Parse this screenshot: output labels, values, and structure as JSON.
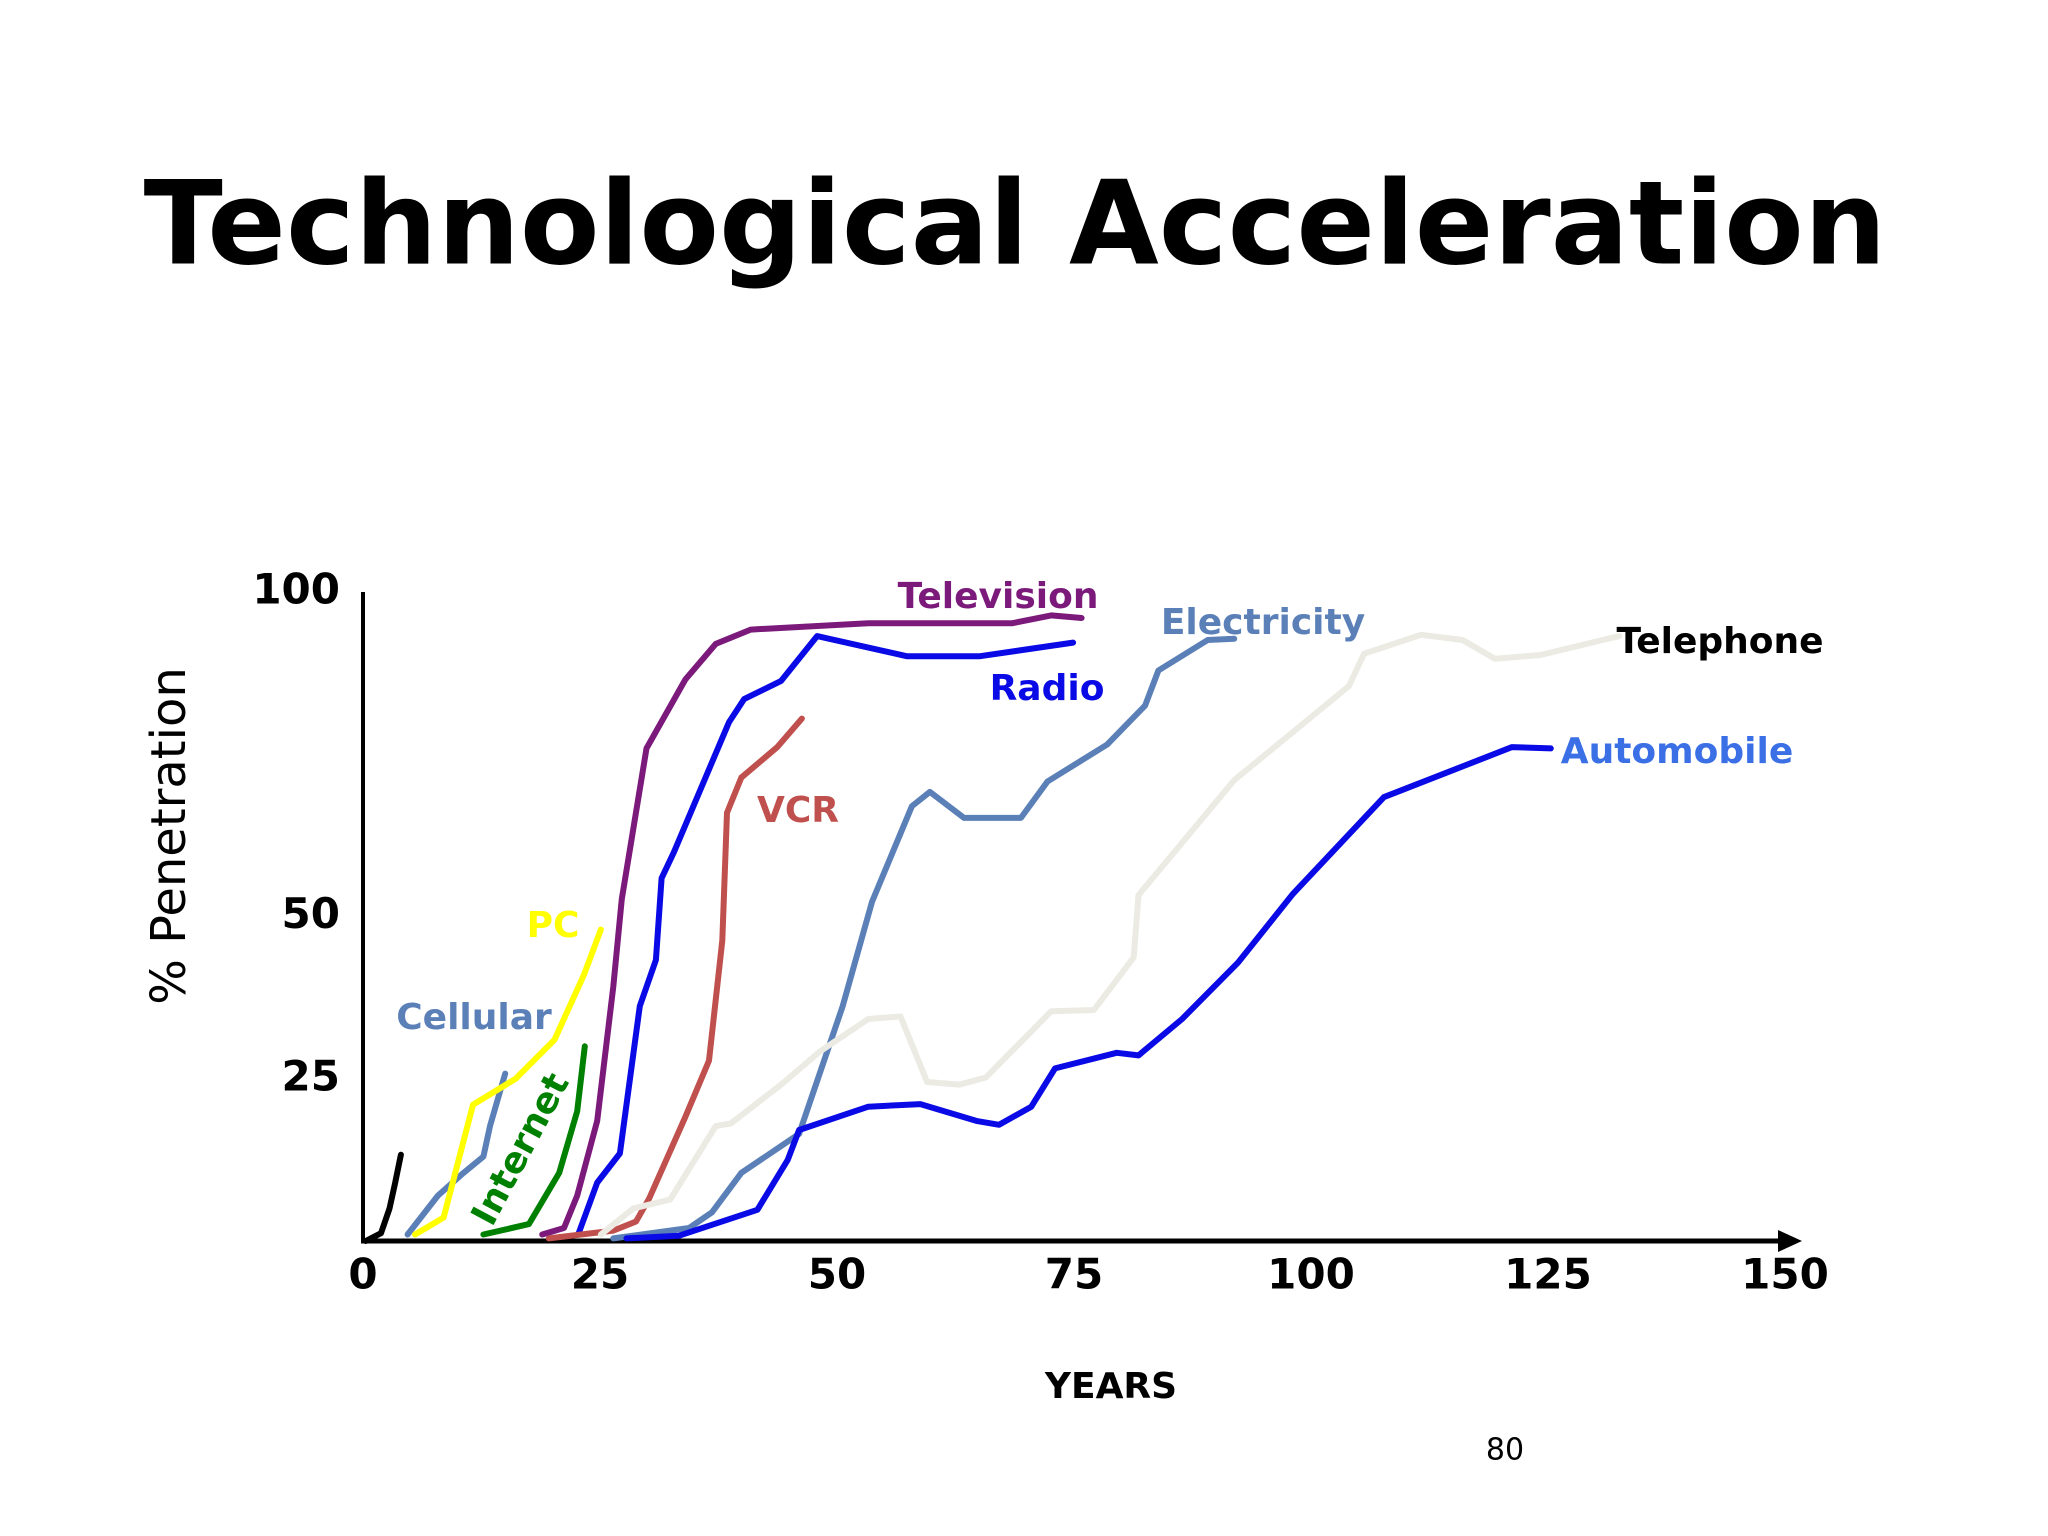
{
  "chart_data": {
    "type": "line",
    "title": "Technological Acceleration",
    "xlabel": "YEARS",
    "ylabel": "% Penetration",
    "page_number": "80",
    "xlim": [
      0,
      150
    ],
    "ylim": [
      0,
      100
    ],
    "xticks": [
      0,
      25,
      50,
      75,
      100,
      125,
      150
    ],
    "yticks": [
      25,
      50,
      100
    ],
    "grid": false,
    "series": [
      {
        "name": null,
        "color": "#000000",
        "x": [
          0.3,
          1.9,
          2.8,
          3.4,
          4.0
        ],
        "values": [
          0,
          1.2,
          5,
          9,
          13.3
        ]
      },
      {
        "name": "Cellular",
        "color": "#5b80b8",
        "label_color": "#5b80b8",
        "x": [
          4.7,
          7.9,
          10.6,
          12.7,
          13.4,
          15.0
        ],
        "values": [
          1,
          7,
          10.5,
          13,
          17.7,
          25.8
        ]
      },
      {
        "name": "PC",
        "color": "#ffff00",
        "label_color": "#ffff00",
        "x": [
          5.5,
          8.5,
          11.6,
          16.1,
          20.2,
          23.3,
          25.1
        ],
        "values": [
          1,
          3.6,
          21,
          25,
          31,
          41,
          48
        ]
      },
      {
        "name": "Internet",
        "color": "#008000",
        "label_color": "#008000",
        "x": [
          12.7,
          17.5,
          20.7,
          22.6,
          23.4
        ],
        "values": [
          1,
          2.6,
          10.5,
          20,
          30
        ]
      },
      {
        "name": "Television",
        "color": "#7b1a7b",
        "label_color": "#7b1a7b",
        "x": [
          18.9,
          21.2,
          22.6,
          24.7,
          26.4,
          27.3,
          29.9,
          34.0,
          37.2,
          40.9,
          53.3,
          68.5,
          72.6,
          75.8
        ],
        "values": [
          1,
          2,
          7,
          18.5,
          39.2,
          52.7,
          75.9,
          86.5,
          92,
          94.2,
          95.2,
          95.2,
          96.4,
          96.0
        ]
      },
      {
        "name": "Radio",
        "color": "#0a0ae6",
        "label_color": "#0a0ae6",
        "x": [
          22.7,
          24.7,
          27.1,
          29.2,
          30.9,
          31.5,
          32.8,
          38.6,
          40.2,
          44.1,
          47.9,
          57.4,
          65.0,
          74.9
        ],
        "values": [
          1,
          9,
          13.5,
          36.2,
          43.3,
          55.9,
          59.9,
          79.9,
          83.5,
          86.3,
          93.2,
          90.1,
          90.1,
          92.2
        ]
      },
      {
        "name": "VCR",
        "color": "#c0504d",
        "label_color": "#c0504d",
        "x": [
          19.6,
          26.4,
          28.8,
          30.2,
          34.0,
          36.5,
          37.9,
          38.4,
          39.9,
          43.7,
          46.3
        ],
        "values": [
          0.4,
          1.6,
          3,
          6.6,
          19.1,
          27.8,
          46.3,
          66,
          71.4,
          76.1,
          80.5
        ]
      },
      {
        "name": "Electricity",
        "color": "#5b80b8",
        "label_color": "#5b80b8",
        "x": [
          26.4,
          34.4,
          36.8,
          39.9,
          46.0,
          50.6,
          53.7,
          57.9,
          59.8,
          63.4,
          69.4,
          72.2,
          78.5,
          82.5,
          83.9,
          89.1,
          91.9
        ],
        "values": [
          0.4,
          2,
          4.4,
          10.5,
          16.5,
          36.2,
          52.3,
          67,
          69.2,
          65.2,
          65.2,
          70.8,
          76.5,
          82.5,
          87.9,
          92.6,
          92.8
        ]
      },
      {
        "name": "Telephone",
        "color": "#ebebe3",
        "label_color": "#000000",
        "x": [
          25.1,
          28.5,
          32.4,
          37.2,
          38.8,
          44.1,
          48.2,
          53.3,
          56.7,
          59.5,
          62.9,
          65.7,
          72.6,
          77.1,
          81.3,
          81.8,
          91.9,
          104.0,
          105.6,
          111.6,
          116.0,
          119.4,
          124.2,
          132.5
        ],
        "values": [
          1,
          5,
          6.4,
          17.7,
          18.1,
          24.1,
          29.2,
          34.2,
          34.6,
          24.5,
          24.1,
          25.2,
          35.4,
          35.6,
          43.7,
          53.3,
          71.0,
          85.5,
          90.5,
          93.4,
          92.6,
          89.7,
          90.3,
          93.2
        ]
      },
      {
        "name": "Automobile",
        "color": "#0a0ae6",
        "label_color": "#3b6fe6",
        "x": [
          27.8,
          33.3,
          41.6,
          44.8,
          46.0,
          53.3,
          58.8,
          64.7,
          67.1,
          70.5,
          73.0,
          79.5,
          81.8,
          86.4,
          92.3,
          98.1,
          107.7,
          121.2,
          125.3
        ],
        "values": [
          0.4,
          0.8,
          4.8,
          12.5,
          17.1,
          20.7,
          21.1,
          18.5,
          17.9,
          20.7,
          26.6,
          29,
          28.6,
          34.2,
          42.9,
          53.5,
          68.4,
          76.1,
          75.9
        ]
      }
    ]
  }
}
